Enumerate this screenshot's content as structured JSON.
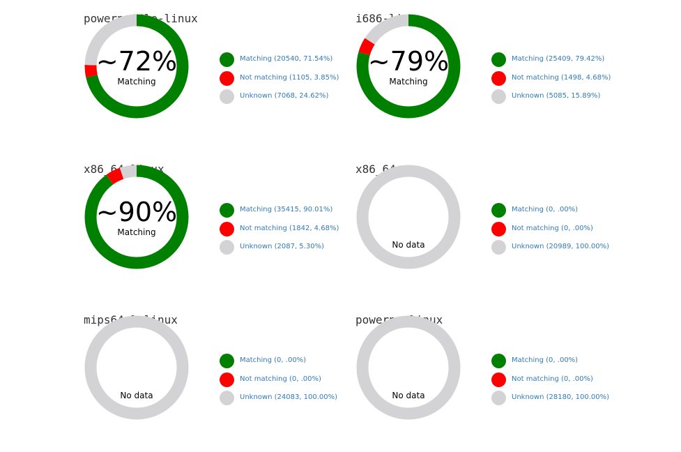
{
  "colors": {
    "matching": "#008000",
    "not_matching": "#ff0000",
    "unknown": "#d3d3d5"
  },
  "center_label": "Matching",
  "no_data_label": "No data",
  "chart_data": [
    {
      "type": "pie",
      "title": "powerpc64le-linux",
      "center": "~72%",
      "slices": [
        {
          "label": "Matching",
          "count": 20540,
          "pct": 71.54,
          "text": "Matching (20540, 71.54%)"
        },
        {
          "label": "Not matching",
          "count": 1105,
          "pct": 3.85,
          "text": "Not matching (1105, 3.85%)"
        },
        {
          "label": "Unknown",
          "count": 7068,
          "pct": 24.62,
          "text": "Unknown (7068, 24.62%)"
        }
      ]
    },
    {
      "type": "pie",
      "title": "i686-linux",
      "center": "~79%",
      "slices": [
        {
          "label": "Matching",
          "count": 25409,
          "pct": 79.42,
          "text": "Matching (25409, 79.42%)"
        },
        {
          "label": "Not matching",
          "count": 1498,
          "pct": 4.68,
          "text": "Not matching (1498, 4.68%)"
        },
        {
          "label": "Unknown",
          "count": 5085,
          "pct": 15.89,
          "text": "Unknown (5085, 15.89%)"
        }
      ]
    },
    {
      "type": "pie",
      "title": "x86_64-linux",
      "center": "~90%",
      "slices": [
        {
          "label": "Matching",
          "count": 35415,
          "pct": 90.01,
          "text": "Matching (35415, 90.01%)"
        },
        {
          "label": "Not matching",
          "count": 1842,
          "pct": 4.68,
          "text": "Not matching (1842, 4.68%)"
        },
        {
          "label": "Unknown",
          "count": 2087,
          "pct": 5.3,
          "text": "Unknown (2087, 5.30%)"
        }
      ]
    },
    {
      "type": "pie",
      "title": "x86_64-gnu",
      "center": "",
      "slices": [
        {
          "label": "Matching",
          "count": 0,
          "pct": 0,
          "text": "Matching (0, .00%)"
        },
        {
          "label": "Not matching",
          "count": 0,
          "pct": 0,
          "text": "Not matching (0, .00%)"
        },
        {
          "label": "Unknown",
          "count": 20989,
          "pct": 100,
          "text": "Unknown (20989, 100.00%)"
        }
      ]
    },
    {
      "type": "pie",
      "title": "mips64el-linux",
      "center": "",
      "slices": [
        {
          "label": "Matching",
          "count": 0,
          "pct": 0,
          "text": "Matching (0, .00%)"
        },
        {
          "label": "Not matching",
          "count": 0,
          "pct": 0,
          "text": "Not matching (0, .00%)"
        },
        {
          "label": "Unknown",
          "count": 24083,
          "pct": 100,
          "text": "Unknown (24083, 100.00%)"
        }
      ]
    },
    {
      "type": "pie",
      "title": "powerpc-linux",
      "center": "",
      "slices": [
        {
          "label": "Matching",
          "count": 0,
          "pct": 0,
          "text": "Matching (0, .00%)"
        },
        {
          "label": "Not matching",
          "count": 0,
          "pct": 0,
          "text": "Not matching (0, .00%)"
        },
        {
          "label": "Unknown",
          "count": 28180,
          "pct": 100,
          "text": "Unknown (28180, 100.00%)"
        }
      ]
    }
  ]
}
